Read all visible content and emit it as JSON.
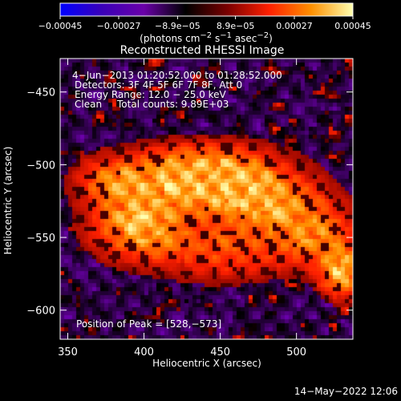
{
  "chart_data": {
    "type": "heatmap",
    "title": "Reconstructed RHESSI Image",
    "xlabel": "Heliocentric X (arcsec)",
    "ylabel": "Heliocentric Y (arcsec)",
    "xlim": [
      345,
      537
    ],
    "ylim": [
      -620,
      -427
    ],
    "x_ticks": [
      "350",
      "400",
      "450",
      "500"
    ],
    "x_tick_values": [
      350,
      400,
      450,
      500
    ],
    "y_ticks": [
      "−450",
      "−500",
      "−550",
      "−600"
    ],
    "y_tick_values": [
      -450,
      -500,
      -550,
      -600
    ],
    "colorbar": {
      "range": [
        -0.00045,
        0.00045
      ],
      "tick_labels": [
        "−0.00045",
        "−0.00027",
        "−8.9e−05",
        "8.9e−05",
        "0.00027",
        "0.00045"
      ],
      "tick_values": [
        -0.00045,
        -0.00027,
        -8.9e-05,
        8.9e-05,
        0.00027,
        0.00045
      ],
      "unit_label_main": "(photons cm",
      "unit_exp1": "−2",
      "unit_mid": " s",
      "unit_exp2": "−1",
      "unit_mid2": " asec",
      "unit_exp3": "−2",
      "unit_end": ")",
      "colormap": [
        "#0000ff",
        "#3a00b8",
        "#6a00a8",
        "#000000",
        "#7a0000",
        "#ff2000",
        "#ff9000",
        "#ffffb0"
      ]
    },
    "annotations": {
      "time_range": "4−Jun−2013 01:20:52.000 to 01:28:52.000",
      "detectors": "Detectors: 3F 4F 5F 6F 7F 8F, Att 0",
      "energy": "Energy Range: 12.0 − 25.0 keV",
      "algorithm": "Clean",
      "counts": "Total counts: 9.89E+03",
      "peak": "Position of Peak = [528,−573]"
    },
    "peak": {
      "x": 528,
      "y": -573
    },
    "bright_region": {
      "components": [
        {
          "x": 430,
          "y": -505,
          "amp": 1.0,
          "sx": 30,
          "sy": 14
        },
        {
          "x": 395,
          "y": -540,
          "amp": 0.95,
          "sx": 22,
          "sy": 16
        },
        {
          "x": 470,
          "y": -520,
          "amp": 0.85,
          "sx": 28,
          "sy": 18
        },
        {
          "x": 510,
          "y": -545,
          "amp": 0.7,
          "sx": 20,
          "sy": 16
        },
        {
          "x": 528,
          "y": -573,
          "amp": 0.95,
          "sx": 10,
          "sy": 12
        },
        {
          "x": 450,
          "y": -560,
          "amp": 0.5,
          "sx": 30,
          "sy": 14
        },
        {
          "x": 375,
          "y": -510,
          "amp": 0.55,
          "sx": 16,
          "sy": 12
        }
      ]
    }
  },
  "footer": {
    "timestamp": "14−May−2022 12:06"
  }
}
